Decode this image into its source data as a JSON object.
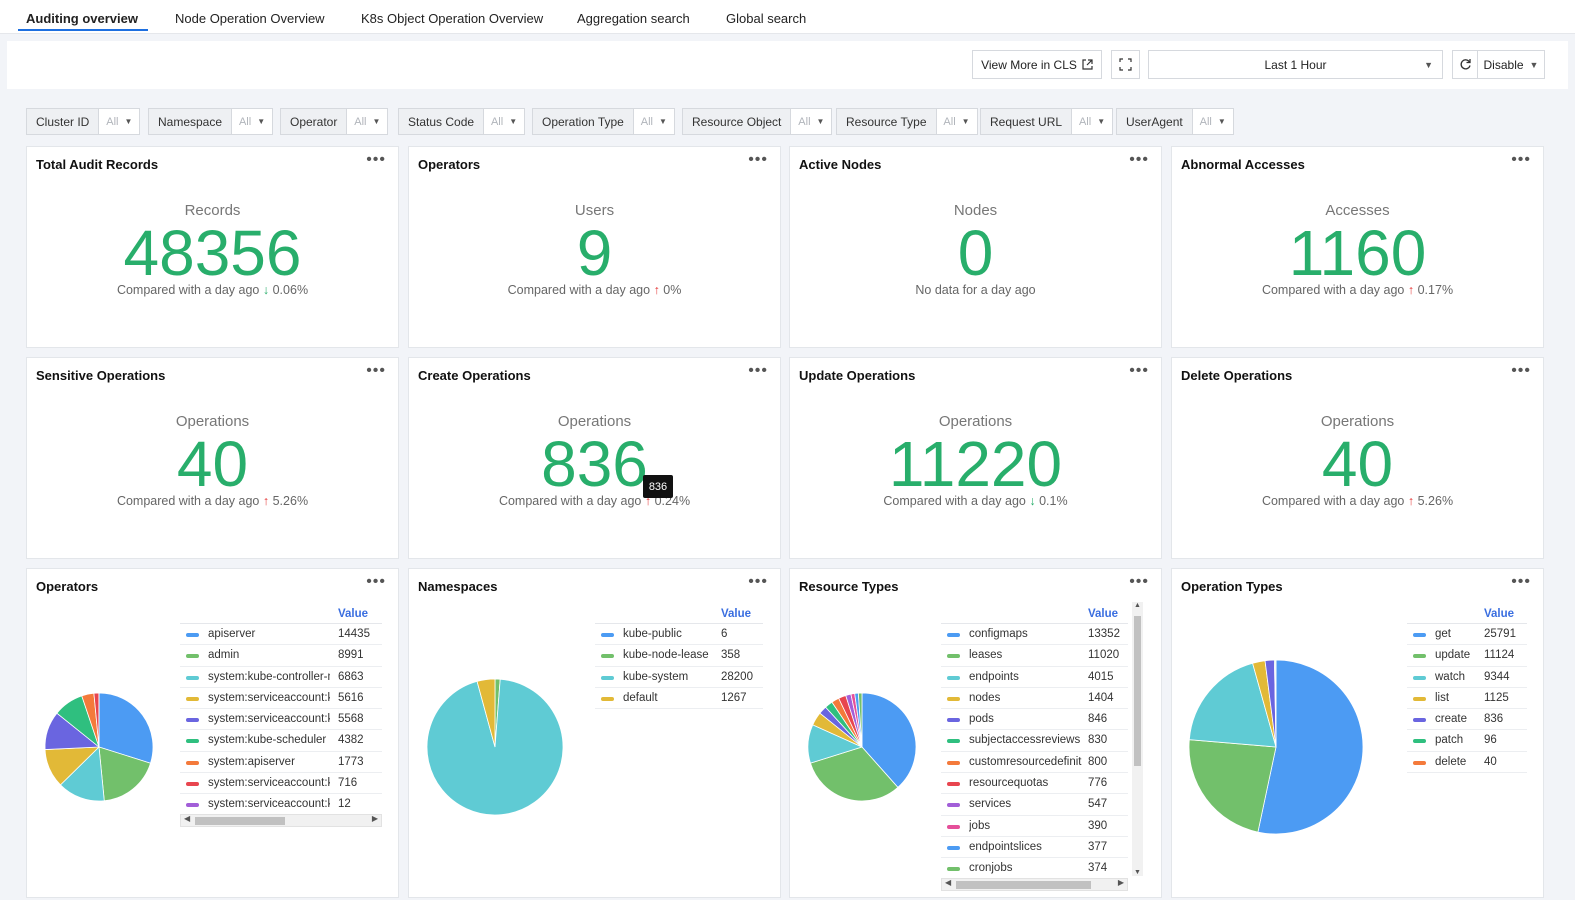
{
  "tabs": [
    "Auditing overview",
    "Node Operation Overview",
    "K8s Object Operation Overview",
    "Aggregation search",
    "Global search"
  ],
  "toolbar": {
    "view_more": "View More in CLS",
    "time_range": "Last 1 Hour",
    "refresh_mode": "Disable"
  },
  "filters": [
    {
      "label": "Cluster ID",
      "value": "All"
    },
    {
      "label": "Namespace",
      "value": "All"
    },
    {
      "label": "Operator",
      "value": "All"
    },
    {
      "label": "Status Code",
      "value": "All"
    },
    {
      "label": "Operation Type",
      "value": "All"
    },
    {
      "label": "Resource Object",
      "value": "All"
    },
    {
      "label": "Resource Type",
      "value": "All"
    },
    {
      "label": "Request URL",
      "value": "All"
    },
    {
      "label": "UserAgent",
      "value": "All"
    }
  ],
  "stats": [
    {
      "title": "Total Audit Records",
      "label": "Records",
      "value": "48356",
      "compare": "Compared with a day ago",
      "direction": "down",
      "delta": "0.06%"
    },
    {
      "title": "Operators",
      "label": "Users",
      "value": "9",
      "compare": "Compared with a day ago",
      "direction": "up",
      "delta": "0%"
    },
    {
      "title": "Active Nodes",
      "label": "Nodes",
      "value": "0",
      "compare": "No data for a day ago",
      "direction": "none",
      "delta": ""
    },
    {
      "title": "Abnormal Accesses",
      "label": "Accesses",
      "value": "1160",
      "compare": "Compared with a day ago",
      "direction": "up",
      "delta": "0.17%"
    },
    {
      "title": "Sensitive Operations",
      "label": "Operations",
      "value": "40",
      "compare": "Compared with a day ago",
      "direction": "up",
      "delta": "5.26%"
    },
    {
      "title": "Create Operations",
      "label": "Operations",
      "value": "836",
      "compare": "Compared with a day ago",
      "direction": "up",
      "delta": "0.24%"
    },
    {
      "title": "Update Operations",
      "label": "Operations",
      "value": "11220",
      "compare": "Compared with a day ago",
      "direction": "down",
      "delta": "0.1%"
    },
    {
      "title": "Delete Operations",
      "label": "Operations",
      "value": "40",
      "compare": "Compared with a day ago",
      "direction": "up",
      "delta": "5.26%"
    }
  ],
  "tooltip": "836",
  "colors": [
    "#4c9bf3",
    "#72c06b",
    "#5fcbd4",
    "#e2b937",
    "#6a65e0",
    "#2fbf7f",
    "#f47a3b",
    "#e8454f",
    "#a25ed8",
    "#e54f9a"
  ],
  "pies": [
    {
      "title": "Operators",
      "value_header": "Value",
      "items": [
        {
          "name": "apiserver",
          "value": 14435
        },
        {
          "name": "admin",
          "value": 8991
        },
        {
          "name": "system:kube-controller-m",
          "value": 6863
        },
        {
          "name": "system:serviceaccount:ku",
          "value": 5616
        },
        {
          "name": "system:serviceaccount:ku",
          "value": 5568
        },
        {
          "name": "system:kube-scheduler",
          "value": 4382
        },
        {
          "name": "system:apiserver",
          "value": 1773
        },
        {
          "name": "system:serviceaccount:ku",
          "value": 716
        },
        {
          "name": "system:serviceaccount:ku",
          "value": 12
        }
      ]
    },
    {
      "title": "Namespaces",
      "value_header": "Value",
      "items": [
        {
          "name": "kube-public",
          "value": 6
        },
        {
          "name": "kube-node-lease",
          "value": 358
        },
        {
          "name": "kube-system",
          "value": 28200
        },
        {
          "name": "default",
          "value": 1267
        }
      ]
    },
    {
      "title": "Resource Types",
      "value_header": "Value",
      "items": [
        {
          "name": "configmaps",
          "value": 13352
        },
        {
          "name": "leases",
          "value": 11020
        },
        {
          "name": "endpoints",
          "value": 4015
        },
        {
          "name": "nodes",
          "value": 1404
        },
        {
          "name": "pods",
          "value": 846
        },
        {
          "name": "subjectaccessreviews",
          "value": 830
        },
        {
          "name": "customresourcedefinit",
          "value": 800
        },
        {
          "name": "resourcequotas",
          "value": 776
        },
        {
          "name": "services",
          "value": 547
        },
        {
          "name": "jobs",
          "value": 390
        },
        {
          "name": "endpointslices",
          "value": 377
        },
        {
          "name": "cronjobs",
          "value": 374
        }
      ]
    },
    {
      "title": "Operation Types",
      "value_header": "Value",
      "items": [
        {
          "name": "get",
          "value": 25791
        },
        {
          "name": "update",
          "value": 11124
        },
        {
          "name": "watch",
          "value": 9344
        },
        {
          "name": "list",
          "value": 1125
        },
        {
          "name": "create",
          "value": 836
        },
        {
          "name": "patch",
          "value": 96
        },
        {
          "name": "delete",
          "value": 40
        }
      ]
    }
  ]
}
